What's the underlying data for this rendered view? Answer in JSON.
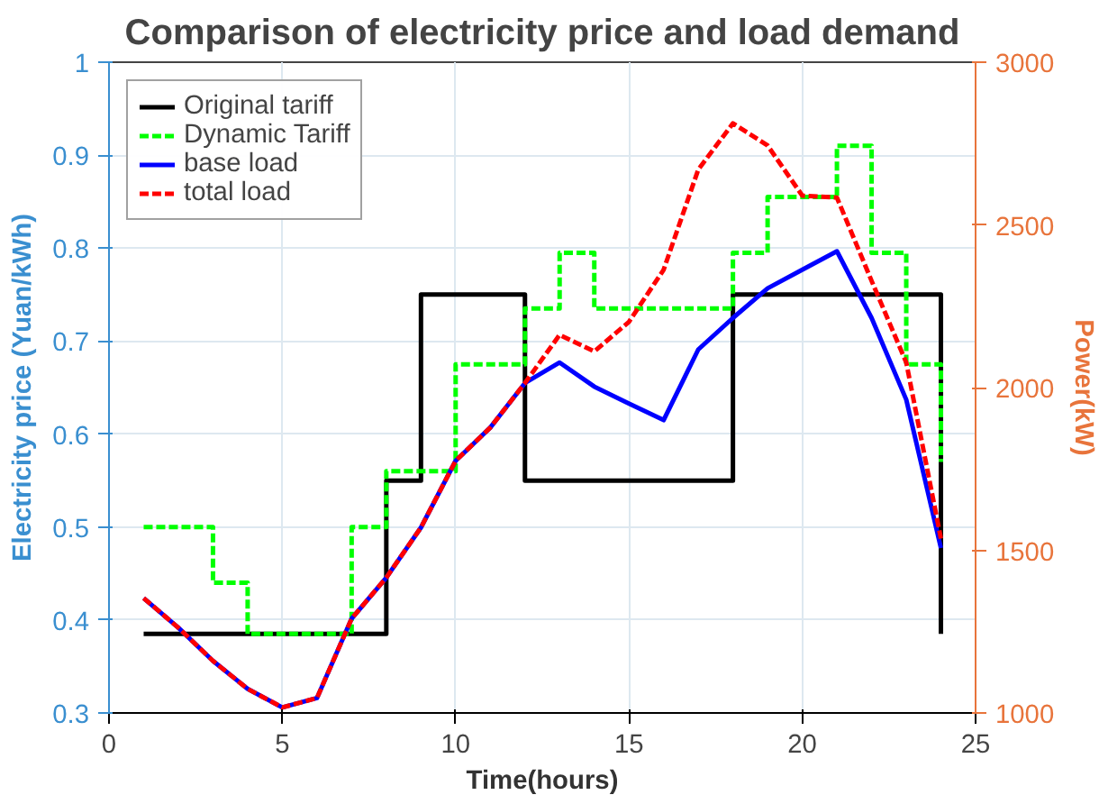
{
  "chart_data": {
    "type": "line",
    "title": "Comparison of electricity price and load demand",
    "xlabel": "Time(hours)",
    "ylabel": "Electricity price (Yuan/kWh)",
    "y2label": "Power(kW)",
    "x": [
      1,
      2,
      3,
      4,
      5,
      6,
      7,
      8,
      9,
      10,
      11,
      12,
      13,
      14,
      15,
      16,
      17,
      18,
      19,
      20,
      21,
      22,
      23,
      24
    ],
    "series": [
      {
        "name": "Original tariff",
        "type": "step",
        "color": "#000000",
        "line_style": "solid",
        "values": [
          0.385,
          0.385,
          0.385,
          0.385,
          0.385,
          0.385,
          0.385,
          0.55,
          0.75,
          0.75,
          0.75,
          0.55,
          0.55,
          0.55,
          0.55,
          0.55,
          0.55,
          0.75,
          0.75,
          0.75,
          0.75,
          0.75,
          0.75,
          0.385
        ]
      },
      {
        "name": "Dynamic Tariff",
        "type": "step",
        "color": "#00ff00",
        "line_style": "dashed",
        "values": [
          0.5,
          0.5,
          0.44,
          0.385,
          0.385,
          0.385,
          0.5,
          0.56,
          0.56,
          0.675,
          0.675,
          0.735,
          0.795,
          0.735,
          0.735,
          0.735,
          0.735,
          0.795,
          0.855,
          0.855,
          0.91,
          0.795,
          0.675,
          0.57
        ]
      },
      {
        "name": "base load",
        "axis": "y2",
        "color": "#0000ff",
        "line_style": "solid",
        "values": [
          1353,
          1262,
          1160,
          1074,
          1017,
          1046,
          1290,
          1416,
          1570,
          1775,
          1877,
          2014,
          2077,
          2003,
          1951,
          1900,
          2117,
          2214,
          2305,
          2362,
          2419,
          2214,
          1963,
          1507
        ]
      },
      {
        "name": "total load",
        "axis": "y2",
        "color": "#ff0000",
        "line_style": "dashed",
        "values": [
          1353,
          1262,
          1160,
          1074,
          1017,
          1046,
          1290,
          1416,
          1570,
          1775,
          1877,
          2014,
          2162,
          2111,
          2202,
          2362,
          2670,
          2812,
          2744,
          2590,
          2584,
          2328,
          2077,
          1536
        ]
      }
    ],
    "xlim": [
      0,
      25
    ],
    "xticks": [
      0,
      5,
      10,
      15,
      20,
      25
    ],
    "ylim": [
      0.3,
      1
    ],
    "yticks": [
      0.3,
      0.4,
      0.5,
      0.6,
      0.7,
      0.8,
      0.9,
      1
    ],
    "y2lim": [
      1000,
      3000
    ],
    "y2ticks": [
      1000,
      1500,
      2000,
      2500,
      3000
    ],
    "grid": true,
    "legend": "top left"
  }
}
